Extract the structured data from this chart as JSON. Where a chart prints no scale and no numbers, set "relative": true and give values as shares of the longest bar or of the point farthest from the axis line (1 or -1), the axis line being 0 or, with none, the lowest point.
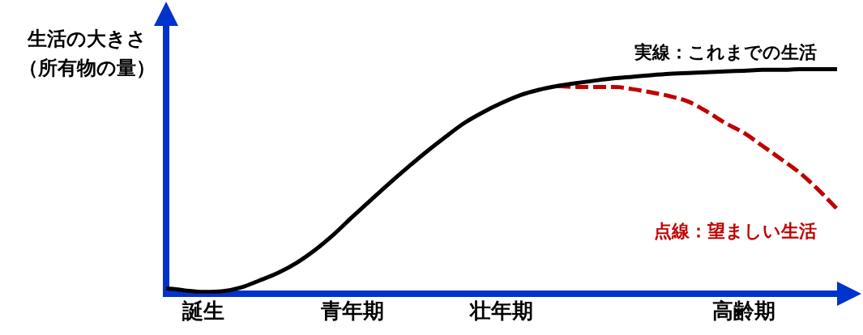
{
  "chart_data": {
    "type": "line",
    "relative": true,
    "ylabel": "生活の大きさ（所有物の量）",
    "categories": [
      null,
      null,
      "誕生",
      null,
      null,
      null,
      null,
      null,
      null,
      null,
      "青年期",
      null,
      null,
      null,
      null,
      null,
      null,
      null,
      "壮年期",
      null,
      null,
      null,
      null,
      null,
      null,
      null,
      null,
      null,
      null,
      null,
      null,
      "高齢期",
      null,
      null,
      null,
      null,
      null
    ],
    "marker": "none",
    "legend": false,
    "grid": false,
    "series": [
      {
        "name": "実線：これまでの生活",
        "color": "#000000",
        "line_style": "solid",
        "values": [
          0.024,
          0.014,
          0.007,
          0.01,
          0.027,
          0.058,
          0.092,
          0.137,
          0.195,
          0.264,
          0.342,
          0.418,
          0.493,
          0.565,
          0.634,
          0.699,
          0.76,
          0.808,
          0.849,
          0.884,
          0.908,
          0.925,
          0.938,
          0.949,
          0.959,
          0.966,
          0.973,
          0.979,
          0.983,
          0.986,
          0.99,
          0.993,
          0.997,
          0.997,
          1,
          1,
          1
        ]
      },
      {
        "name": "点線：望ましい生活",
        "color": "#c00000",
        "line_style": "dashed",
        "values": [
          null,
          null,
          null,
          null,
          null,
          null,
          null,
          null,
          null,
          null,
          null,
          null,
          null,
          null,
          null,
          null,
          null,
          null,
          null,
          null,
          null,
          0.925,
          0.921,
          0.921,
          0.921,
          0.911,
          0.897,
          0.88,
          0.856,
          0.812,
          0.76,
          0.716,
          0.658,
          0.599,
          0.538,
          0.462,
          0.377
        ]
      }
    ]
  }
}
